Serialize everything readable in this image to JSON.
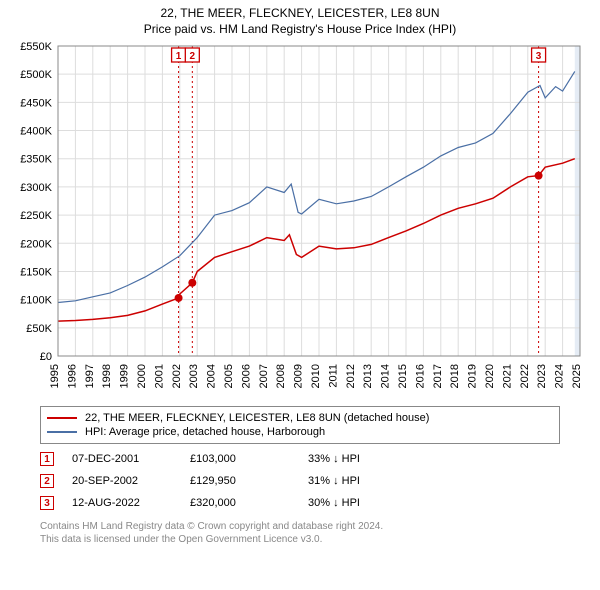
{
  "title": "22, THE MEER, FLECKNEY, LEICESTER, LE8 8UN",
  "subtitle": "Price paid vs. HM Land Registry's House Price Index (HPI)",
  "chart": {
    "type": "line",
    "background_color": "#ffffff",
    "plot_border_color": "#888888",
    "grid_color": "#dddddd",
    "highlight_band_color": "#e5ecf5",
    "x_years": [
      1995,
      1996,
      1997,
      1998,
      1999,
      2000,
      2001,
      2002,
      2003,
      2004,
      2005,
      2006,
      2007,
      2008,
      2009,
      2010,
      2011,
      2012,
      2013,
      2014,
      2015,
      2016,
      2017,
      2018,
      2019,
      2020,
      2021,
      2022,
      2023,
      2024,
      2025
    ],
    "y_min": 0,
    "y_max": 550000,
    "y_step": 50000,
    "y_tick_labels": [
      "£0",
      "£50K",
      "£100K",
      "£150K",
      "£200K",
      "£250K",
      "£300K",
      "£350K",
      "£400K",
      "£450K",
      "£500K",
      "£550K"
    ],
    "series": [
      {
        "name": "22, THE MEER, FLECKNEY, LEICESTER, LE8 8UN (detached house)",
        "color": "#cc0000",
        "width": 1.5,
        "data": [
          [
            1995,
            62000
          ],
          [
            1996,
            63000
          ],
          [
            1997,
            65000
          ],
          [
            1998,
            68000
          ],
          [
            1999,
            72000
          ],
          [
            2000,
            80000
          ],
          [
            2001,
            92000
          ],
          [
            2001.93,
            103000
          ],
          [
            2002,
            110000
          ],
          [
            2002.72,
            129950
          ],
          [
            2003,
            150000
          ],
          [
            2004,
            175000
          ],
          [
            2005,
            185000
          ],
          [
            2006,
            195000
          ],
          [
            2007,
            210000
          ],
          [
            2008,
            205000
          ],
          [
            2008.3,
            215000
          ],
          [
            2008.7,
            180000
          ],
          [
            2009,
            175000
          ],
          [
            2010,
            195000
          ],
          [
            2011,
            190000
          ],
          [
            2012,
            192000
          ],
          [
            2013,
            198000
          ],
          [
            2014,
            210000
          ],
          [
            2015,
            222000
          ],
          [
            2016,
            235000
          ],
          [
            2017,
            250000
          ],
          [
            2018,
            262000
          ],
          [
            2019,
            270000
          ],
          [
            2020,
            280000
          ],
          [
            2021,
            300000
          ],
          [
            2022,
            318000
          ],
          [
            2022.62,
            320000
          ],
          [
            2023,
            335000
          ],
          [
            2024,
            342000
          ],
          [
            2024.7,
            350000
          ]
        ]
      },
      {
        "name": "HPI: Average price, detached house, Harborough",
        "color": "#4a6fa5",
        "width": 1.2,
        "data": [
          [
            1995,
            95000
          ],
          [
            1996,
            98000
          ],
          [
            1997,
            105000
          ],
          [
            1998,
            112000
          ],
          [
            1999,
            125000
          ],
          [
            2000,
            140000
          ],
          [
            2001,
            158000
          ],
          [
            2002,
            178000
          ],
          [
            2003,
            210000
          ],
          [
            2004,
            250000
          ],
          [
            2005,
            258000
          ],
          [
            2006,
            272000
          ],
          [
            2007,
            300000
          ],
          [
            2008,
            290000
          ],
          [
            2008.4,
            305000
          ],
          [
            2008.8,
            255000
          ],
          [
            2009,
            252000
          ],
          [
            2010,
            278000
          ],
          [
            2011,
            270000
          ],
          [
            2012,
            275000
          ],
          [
            2013,
            283000
          ],
          [
            2014,
            300000
          ],
          [
            2015,
            318000
          ],
          [
            2016,
            335000
          ],
          [
            2017,
            355000
          ],
          [
            2018,
            370000
          ],
          [
            2019,
            378000
          ],
          [
            2020,
            395000
          ],
          [
            2021,
            430000
          ],
          [
            2022,
            468000
          ],
          [
            2022.7,
            480000
          ],
          [
            2023,
            458000
          ],
          [
            2023.6,
            478000
          ],
          [
            2024,
            470000
          ],
          [
            2024.7,
            505000
          ]
        ]
      }
    ],
    "sale_markers": [
      {
        "label": "1",
        "x": 2001.93,
        "y": 103000,
        "line_color": "#cc0000"
      },
      {
        "label": "2",
        "x": 2002.72,
        "y": 129950,
        "line_color": "#cc0000"
      },
      {
        "label": "3",
        "x": 2022.62,
        "y": 320000,
        "line_color": "#cc0000"
      }
    ],
    "highlight_band": {
      "x_start": 2024.7,
      "x_end": 2025
    }
  },
  "legend": {
    "items": [
      {
        "color": "#cc0000",
        "label": "22, THE MEER, FLECKNEY, LEICESTER, LE8 8UN (detached house)"
      },
      {
        "color": "#4a6fa5",
        "label": "HPI: Average price, detached house, Harborough"
      }
    ]
  },
  "transactions": [
    {
      "marker": "1",
      "date": "07-DEC-2001",
      "price": "£103,000",
      "diff": "33% ↓ HPI"
    },
    {
      "marker": "2",
      "date": "20-SEP-2002",
      "price": "£129,950",
      "diff": "31% ↓ HPI"
    },
    {
      "marker": "3",
      "date": "12-AUG-2022",
      "price": "£320,000",
      "diff": "30% ↓ HPI"
    }
  ],
  "footer_line1": "Contains HM Land Registry data © Crown copyright and database right 2024.",
  "footer_line2": "This data is licensed under the Open Government Licence v3.0."
}
